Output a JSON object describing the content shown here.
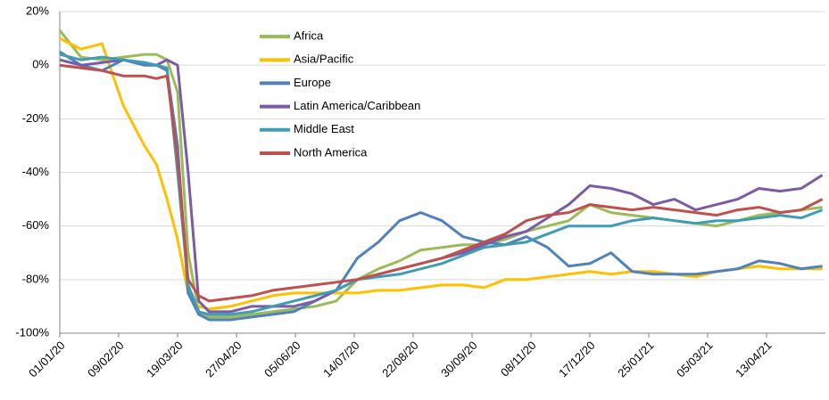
{
  "chart_data": {
    "type": "line",
    "x": [
      "01/01/20",
      "15/01/20",
      "29/01/20",
      "12/02/20",
      "26/02/20",
      "05/03/20",
      "12/03/20",
      "19/03/20",
      "26/03/20",
      "02/04/20",
      "09/04/20",
      "23/04/20",
      "07/05/20",
      "21/05/20",
      "04/06/20",
      "18/06/20",
      "02/07/20",
      "16/07/20",
      "30/07/20",
      "13/08/20",
      "27/08/20",
      "10/09/20",
      "24/09/20",
      "08/10/20",
      "22/10/20",
      "05/11/20",
      "19/11/20",
      "03/12/20",
      "17/12/20",
      "31/12/20",
      "14/01/21",
      "28/01/21",
      "11/02/21",
      "25/02/21",
      "11/03/21",
      "25/03/21",
      "08/04/21",
      "22/04/21",
      "06/05/21",
      "20/05/21"
    ],
    "series": [
      {
        "name": "Africa",
        "color": "#9bbb59",
        "values": [
          13,
          3,
          2,
          3,
          4,
          4,
          2,
          -10,
          -70,
          -92,
          -94,
          -94,
          -93,
          -92,
          -91,
          -90,
          -88,
          -80,
          -76,
          -73,
          -69,
          -68,
          -67,
          -67,
          -65,
          -62,
          -60,
          -58,
          -52,
          -55,
          -56,
          -57,
          -58,
          -59,
          -60,
          -58,
          -56,
          -55,
          -54,
          -53
        ]
      },
      {
        "name": "Asia/Pacific",
        "color": "#ffc000",
        "values": [
          10,
          6,
          8,
          -15,
          -30,
          -37,
          -50,
          -65,
          -85,
          -90,
          -91,
          -90,
          -88,
          -86,
          -85,
          -85,
          -85,
          -85,
          -84,
          -84,
          -83,
          -82,
          -82,
          -83,
          -80,
          -80,
          -79,
          -78,
          -77,
          -78,
          -77,
          -77,
          -78,
          -79,
          -77,
          -76,
          -75,
          -76,
          -76,
          -76
        ]
      },
      {
        "name": "Europe",
        "color": "#4f81bd",
        "values": [
          5,
          0,
          -2,
          2,
          0,
          0,
          -2,
          -30,
          -85,
          -93,
          -95,
          -95,
          -94,
          -93,
          -92,
          -88,
          -84,
          -72,
          -66,
          -58,
          -55,
          -58,
          -64,
          -66,
          -67,
          -64,
          -68,
          -75,
          -74,
          -70,
          -77,
          -78,
          -78,
          -78,
          -77,
          -76,
          -73,
          -74,
          -76,
          -75
        ]
      },
      {
        "name": "Latin America/Caribbean",
        "color": "#7a5ca6",
        "values": [
          2,
          0,
          1,
          2,
          1,
          0,
          2,
          0,
          -40,
          -88,
          -92,
          -92,
          -90,
          -90,
          -90,
          -88,
          -84,
          -80,
          -78,
          -76,
          -74,
          -72,
          -70,
          -67,
          -64,
          -62,
          -57,
          -52,
          -45,
          -46,
          -48,
          -52,
          -50,
          -54,
          -52,
          -50,
          -46,
          -47,
          -46,
          -41
        ]
      },
      {
        "name": "Middle East",
        "color": "#3e9cb5",
        "values": [
          4,
          2,
          3,
          2,
          1,
          0,
          -1,
          -40,
          -82,
          -92,
          -93,
          -93,
          -92,
          -90,
          -88,
          -86,
          -84,
          -80,
          -79,
          -78,
          -76,
          -74,
          -71,
          -68,
          -67,
          -66,
          -63,
          -60,
          -60,
          -60,
          -58,
          -57,
          -58,
          -59,
          -58,
          -58,
          -57,
          -56,
          -57,
          -54
        ]
      },
      {
        "name": "North America",
        "color": "#c0504d",
        "values": [
          0,
          -1,
          -2,
          -4,
          -4,
          -5,
          -4,
          -35,
          -80,
          -86,
          -88,
          -87,
          -86,
          -84,
          -83,
          -82,
          -81,
          -80,
          -78,
          -76,
          -74,
          -72,
          -69,
          -66,
          -63,
          -58,
          -56,
          -55,
          -52,
          -53,
          -54,
          -53,
          -54,
          -55,
          -56,
          -54,
          -53,
          -55,
          -54,
          -50
        ]
      }
    ],
    "xlim": [
      "01/01/20",
      "22/05/21"
    ],
    "xticks": [
      "01/01/20",
      "09/02/20",
      "19/03/20",
      "27/04/20",
      "05/06/20",
      "14/07/20",
      "22/08/20",
      "30/09/20",
      "08/11/20",
      "17/12/20",
      "25/01/21",
      "05/03/21",
      "13/04/21"
    ],
    "ylim": [
      -100,
      20
    ],
    "yticks": [
      {
        "value": -100,
        "label": "-100%"
      },
      {
        "value": -80,
        "label": "-80%"
      },
      {
        "value": -60,
        "label": "-60%"
      },
      {
        "value": -40,
        "label": "-40%"
      },
      {
        "value": -20,
        "label": "-20%"
      },
      {
        "value": 0,
        "label": "0%"
      },
      {
        "value": 20,
        "label": "20%"
      }
    ],
    "grid": true,
    "legend": "top"
  }
}
